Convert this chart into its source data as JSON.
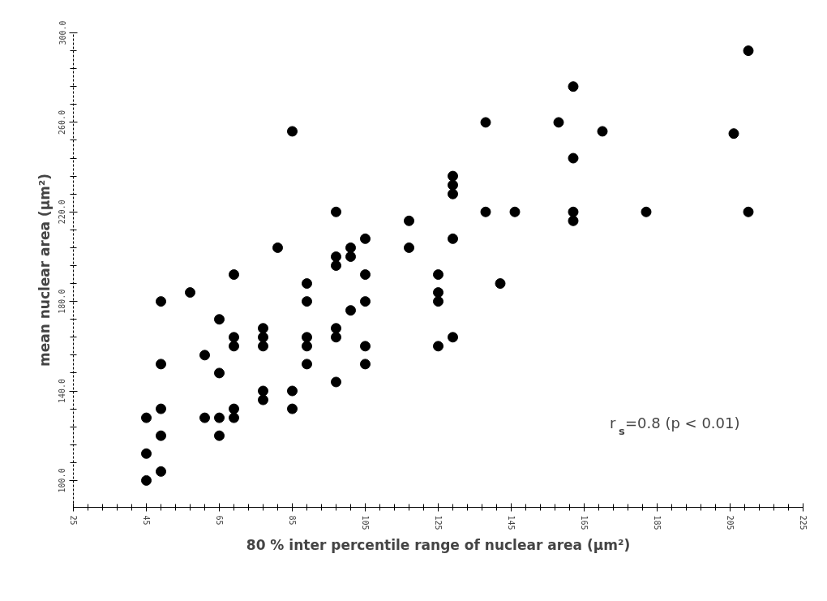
{
  "chart_data": {
    "type": "scatter",
    "xlabel": "80 % inter percentile range of nuclear area (µm²)",
    "ylabel": "mean nuclear area (µm²)",
    "annotations": [
      "r$_{s}$=0.8 (p < 0.01)"
    ],
    "series": [
      {
        "color": "#000000",
        "x": [
          45,
          45,
          45,
          49,
          49,
          49,
          49,
          49,
          57,
          61,
          61,
          65,
          65,
          65,
          65,
          69,
          69,
          69,
          69,
          69,
          77,
          77,
          77,
          77,
          77,
          81,
          85,
          85,
          85,
          89,
          89,
          89,
          89,
          89,
          97,
          97,
          97,
          97,
          97,
          97,
          101,
          101,
          101,
          105,
          105,
          105,
          105,
          105,
          117,
          117,
          125,
          125,
          125,
          125,
          129,
          129,
          129,
          129,
          129,
          138,
          138,
          142,
          146,
          158,
          162,
          162,
          162,
          162,
          170,
          182,
          206,
          210,
          210
        ],
        "values": [
          100,
          112,
          128,
          104,
          120,
          132,
          152,
          180,
          184,
          156,
          128,
          128,
          120,
          148,
          172,
          128,
          132,
          160,
          164,
          192,
          136,
          140,
          160,
          164,
          168,
          204,
          256,
          132,
          140,
          152,
          160,
          164,
          180,
          188,
          144,
          164,
          168,
          196,
          200,
          220,
          176,
          200,
          204,
          152,
          160,
          180,
          192,
          208,
          204,
          216,
          160,
          180,
          184,
          192,
          164,
          208,
          228,
          232,
          236,
          220,
          260,
          188,
          220,
          260,
          220,
          216,
          244,
          276,
          256,
          220,
          255,
          220,
          292
        ]
      }
    ],
    "xlim": [
      25,
      225
    ],
    "ylim": [
      88,
      300
    ],
    "xticks": [
      25,
      45,
      65,
      85,
      105,
      125,
      145,
      165,
      185,
      205,
      225
    ],
    "yticks": [
      {
        "value": 100,
        "label": "100.0"
      },
      {
        "value": 140,
        "label": "140.0"
      },
      {
        "value": 180,
        "label": "180.0"
      },
      {
        "value": 220,
        "label": "220.0"
      },
      {
        "value": 260,
        "label": "260.0"
      },
      {
        "value": 300,
        "label": "300.0"
      }
    ],
    "grid": false,
    "marker": "circle"
  }
}
